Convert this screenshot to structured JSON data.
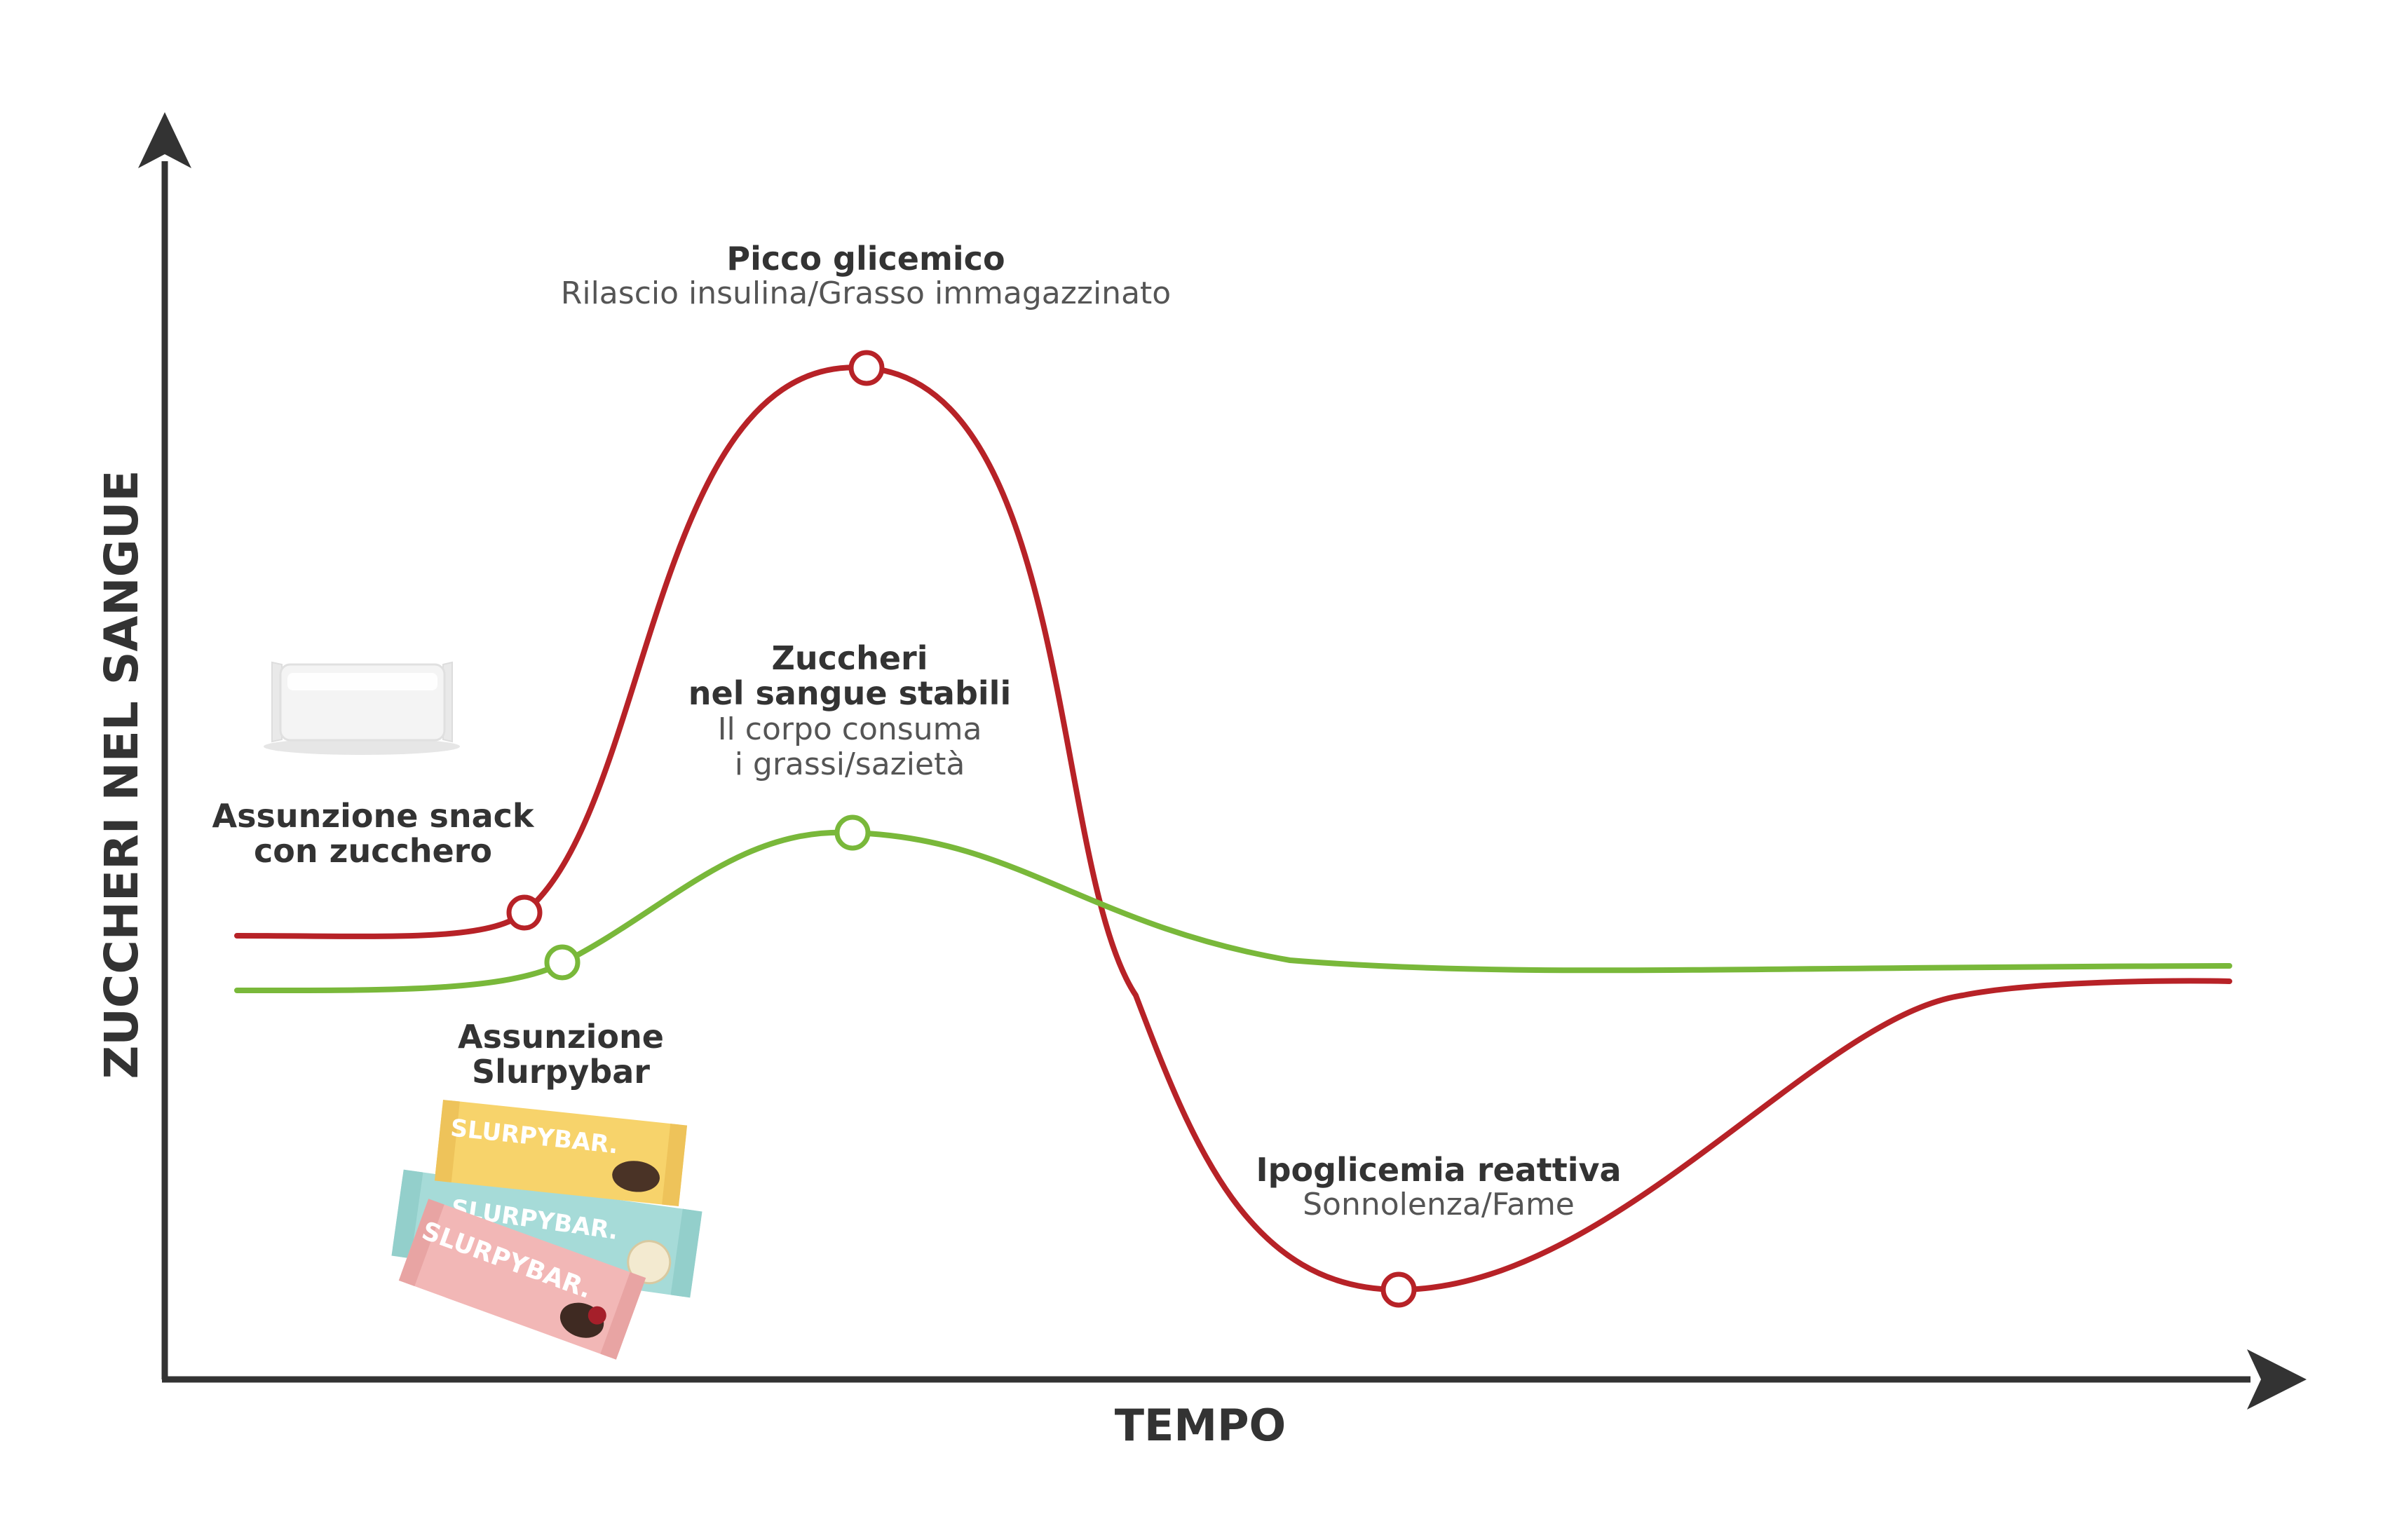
{
  "axes": {
    "y_label": "ZUCCHERI NEL SANGUE",
    "x_label": "TEMPO"
  },
  "annotations": {
    "peak": {
      "title": "Picco glicemico",
      "subtitle": "Rilascio insulina/Grasso immagazzinato"
    },
    "stable": {
      "title_line1": "Zuccheri",
      "title_line2": "nel sangue stabili",
      "subtitle_line1": "Il corpo consuma",
      "subtitle_line2": "i grassi/sazietà"
    },
    "snack": {
      "line1": "Assunzione snack",
      "line2": "con zucchero"
    },
    "slurpybar": {
      "line1": "Assunzione",
      "line2": "Slurpybar"
    },
    "hypo": {
      "title": "Ipoglicemia reattiva",
      "subtitle": "Sonnolenza/Fame"
    }
  },
  "products": {
    "bar_brand": "SLURPYBAR."
  },
  "colors": {
    "axis": "#333333",
    "sugar_curve": "#b72227",
    "slurpy_curve": "#79b83a",
    "title_text": "#333333",
    "subtitle_text": "#555555",
    "bar_yellow": "#f7d36b",
    "bar_teal": "#a6dbd8",
    "bar_pink": "#f2b7b6",
    "wrapper_white": "#f4f4f4"
  },
  "icons": {
    "y_arrow": "arrow-up-icon",
    "x_arrow": "arrow-right-icon"
  }
}
